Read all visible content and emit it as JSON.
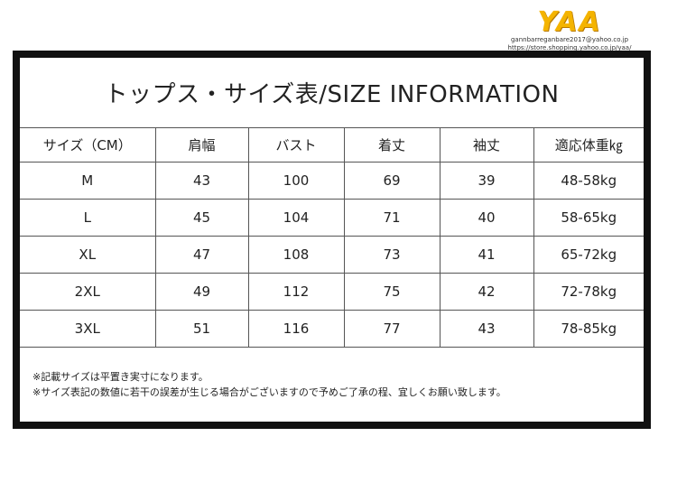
{
  "logo": {
    "mark": "YAA",
    "email": "gannbarreganbare2017@yahoo.co.jp",
    "url": "https://store.shopping.yahoo.co.jp/yaa/"
  },
  "title": "トップス・サイズ表/SIZE INFORMATION",
  "table": {
    "headers": [
      "サイズ（CM）",
      "肩幅",
      "バスト",
      "着丈",
      "袖丈",
      "適応体重㎏"
    ],
    "rows": [
      [
        "M",
        "43",
        "100",
        "69",
        "39",
        "48-58kg"
      ],
      [
        "L",
        "45",
        "104",
        "71",
        "40",
        "58-65kg"
      ],
      [
        "XL",
        "47",
        "108",
        "73",
        "41",
        "65-72kg"
      ],
      [
        "2XL",
        "49",
        "112",
        "75",
        "42",
        "72-78kg"
      ],
      [
        "3XL",
        "51",
        "116",
        "77",
        "43",
        "78-85kg"
      ]
    ]
  },
  "notes": [
    "※記載サイズは平置き実寸になります。",
    "※サイズ表記の数値に若干の誤差が生じる場合がございますので予めご了承の程、宜しくお願い致します。"
  ]
}
